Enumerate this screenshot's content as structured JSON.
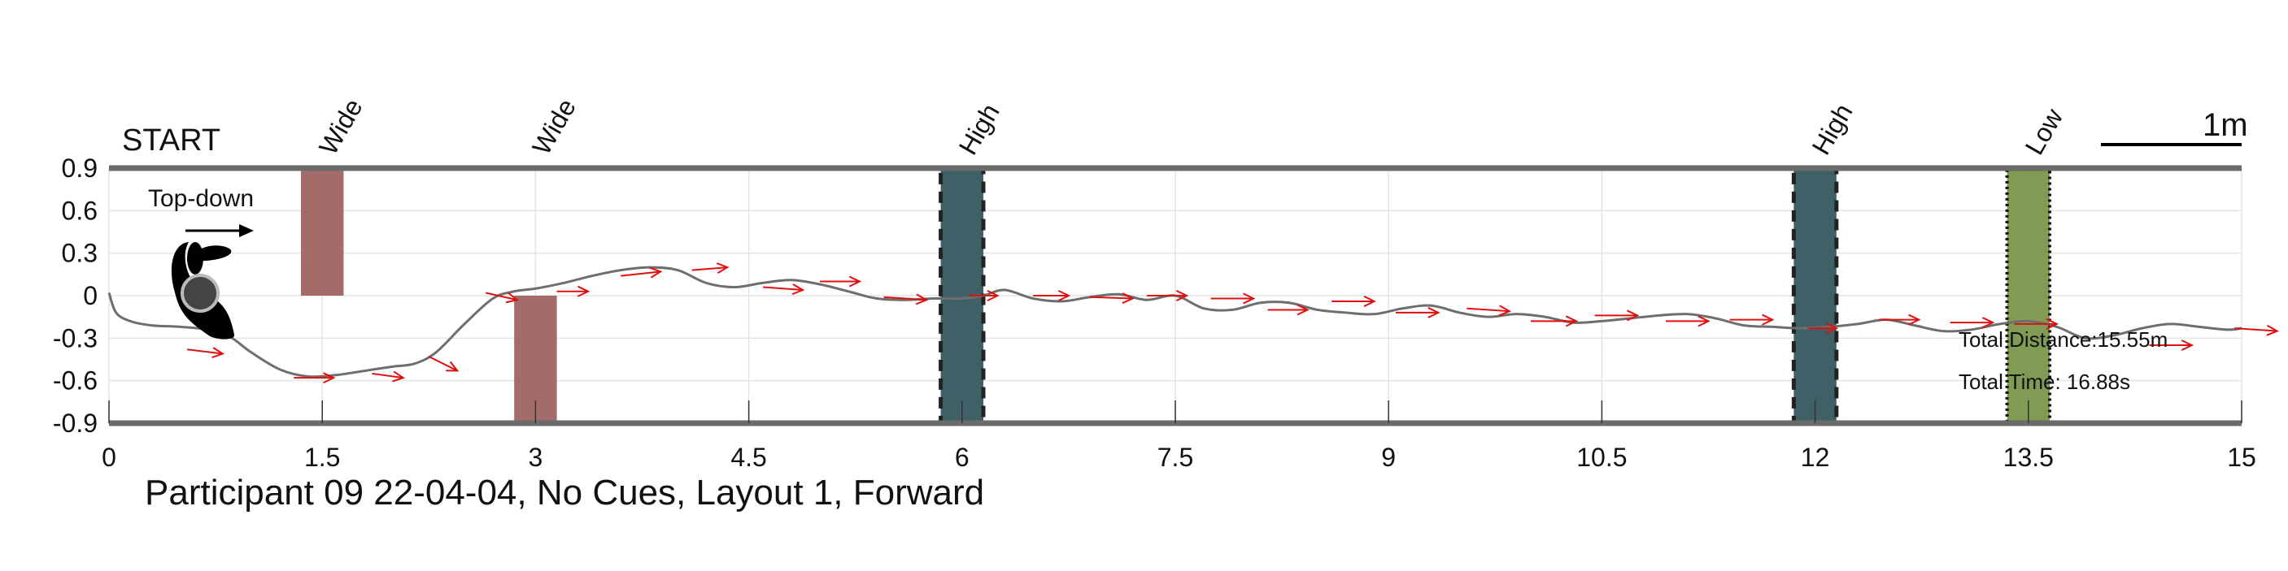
{
  "chart_data": {
    "type": "line",
    "title": "Participant 09 22-04-04, No Cues, Layout 1, Forward",
    "xlabel": "",
    "ylabel": "",
    "xlim": [
      0,
      15
    ],
    "ylim": [
      -0.9,
      0.9
    ],
    "grid": true,
    "x_ticks": [
      0,
      1.5,
      3,
      4.5,
      6,
      7.5,
      9,
      10.5,
      12,
      13.5,
      15
    ],
    "y_ticks": [
      0.9,
      0.6,
      0.3,
      0,
      -0.3,
      -0.6,
      -0.9
    ],
    "x_tick_labels": [
      "0",
      "1.5",
      "3",
      "4.5",
      "6",
      "7.5",
      "9",
      "10.5",
      "12",
      "13.5",
      "15"
    ],
    "y_tick_labels": [
      "0.9",
      "0.6",
      "0.3",
      "0",
      "-0.3",
      "-0.6",
      "-0.9"
    ],
    "start_label": "START",
    "legend_label": "Top-down",
    "scale_label": "1m",
    "annotations": [
      "Total Distance:15.55m",
      "Total Time: 16.88s"
    ],
    "obstacles": [
      {
        "label": "Wide",
        "type": "wide",
        "x0": 1.35,
        "x1": 1.65,
        "y0": 0,
        "y1": 0.9,
        "color": "#a46b6b"
      },
      {
        "label": "Wide",
        "type": "wide",
        "x0": 2.85,
        "x1": 3.15,
        "y0": -0.9,
        "y1": 0,
        "color": "#a46b6b"
      },
      {
        "label": "High",
        "type": "high",
        "x0": 5.85,
        "x1": 6.15,
        "y0": -0.9,
        "y1": 0.9,
        "color": "#3f6066"
      },
      {
        "label": "High",
        "type": "high",
        "x0": 11.85,
        "x1": 12.15,
        "y0": -0.9,
        "y1": 0.9,
        "color": "#3f6066"
      },
      {
        "label": "Low",
        "type": "low",
        "x0": 13.35,
        "x1": 13.65,
        "y0": -0.9,
        "y1": 0.9,
        "color": "#7f9b54"
      }
    ],
    "series": [
      {
        "x": [
          0,
          0.05,
          0.15,
          0.3,
          0.5,
          0.7,
          0.85,
          1.0,
          1.2,
          1.4,
          1.6,
          1.8,
          2.0,
          2.15,
          2.3,
          2.5,
          2.7,
          2.85,
          3.0,
          3.2,
          3.4,
          3.6,
          3.8,
          4.0,
          4.2,
          4.4,
          4.6,
          4.8,
          5.0,
          5.2,
          5.4,
          5.6,
          5.8,
          6.0,
          6.15,
          6.3,
          6.5,
          6.7,
          6.9,
          7.1,
          7.3,
          7.5,
          7.7,
          7.9,
          8.1,
          8.3,
          8.5,
          8.7,
          8.9,
          9.1,
          9.3,
          9.5,
          9.7,
          9.9,
          10.1,
          10.3,
          10.5,
          10.7,
          10.9,
          11.1,
          11.3,
          11.5,
          11.7,
          11.9,
          12.1,
          12.3,
          12.5,
          12.7,
          12.9,
          13.1,
          13.3,
          13.5,
          13.7,
          13.9,
          14.1,
          14.3,
          14.5,
          14.7,
          14.9,
          15.0
        ],
        "y": [
          0.02,
          -0.12,
          -0.18,
          -0.21,
          -0.22,
          -0.24,
          -0.29,
          -0.4,
          -0.52,
          -0.57,
          -0.56,
          -0.53,
          -0.5,
          -0.48,
          -0.4,
          -0.2,
          -0.02,
          0.03,
          0.05,
          0.09,
          0.14,
          0.18,
          0.2,
          0.18,
          0.09,
          0.06,
          0.09,
          0.11,
          0.08,
          0.03,
          -0.02,
          -0.03,
          -0.02,
          -0.02,
          0.0,
          0.04,
          -0.02,
          -0.04,
          -0.01,
          0.01,
          -0.03,
          0.0,
          -0.09,
          -0.1,
          -0.05,
          -0.05,
          -0.1,
          -0.12,
          -0.13,
          -0.09,
          -0.07,
          -0.12,
          -0.15,
          -0.13,
          -0.15,
          -0.19,
          -0.18,
          -0.16,
          -0.14,
          -0.13,
          -0.16,
          -0.21,
          -0.22,
          -0.23,
          -0.22,
          -0.2,
          -0.17,
          -0.21,
          -0.25,
          -0.24,
          -0.2,
          -0.18,
          -0.22,
          -0.3,
          -0.28,
          -0.23,
          -0.2,
          -0.22,
          -0.24,
          -0.23
        ],
        "color": "#6e6e6e"
      }
    ],
    "direction_arrows": [
      [
        0.55,
        -0.38,
        0.25,
        -0.03
      ],
      [
        1.3,
        -0.58,
        0.28,
        0.0
      ],
      [
        1.85,
        -0.55,
        0.22,
        -0.03
      ],
      [
        2.25,
        -0.43,
        0.2,
        -0.1
      ],
      [
        2.65,
        0.02,
        0.22,
        -0.05
      ],
      [
        3.15,
        0.03,
        0.22,
        0.0
      ],
      [
        3.6,
        0.14,
        0.28,
        0.03
      ],
      [
        4.1,
        0.18,
        0.25,
        0.02
      ],
      [
        4.6,
        0.06,
        0.28,
        -0.02
      ],
      [
        5.0,
        0.1,
        0.28,
        0.0
      ],
      [
        5.45,
        -0.01,
        0.3,
        -0.02
      ],
      [
        6.05,
        0.0,
        0.2,
        0.0
      ],
      [
        6.5,
        0.0,
        0.25,
        0.0
      ],
      [
        6.9,
        -0.01,
        0.3,
        -0.01
      ],
      [
        7.3,
        0.0,
        0.28,
        0.0
      ],
      [
        7.75,
        -0.02,
        0.3,
        0.0
      ],
      [
        8.15,
        -0.1,
        0.28,
        0.0
      ],
      [
        8.6,
        -0.04,
        0.3,
        0.0
      ],
      [
        9.05,
        -0.12,
        0.3,
        0.0
      ],
      [
        9.55,
        -0.09,
        0.3,
        -0.02
      ],
      [
        10.0,
        -0.18,
        0.32,
        0.0
      ],
      [
        10.45,
        -0.14,
        0.3,
        0.0
      ],
      [
        10.95,
        -0.18,
        0.3,
        0.0
      ],
      [
        11.4,
        -0.17,
        0.3,
        0.0
      ],
      [
        11.95,
        -0.23,
        0.2,
        0.0
      ],
      [
        12.45,
        -0.17,
        0.28,
        0.0
      ],
      [
        12.95,
        -0.19,
        0.3,
        0.0
      ],
      [
        13.4,
        -0.2,
        0.3,
        0.0
      ],
      [
        14.35,
        -0.35,
        0.3,
        0.0
      ],
      [
        14.95,
        -0.23,
        0.3,
        -0.02
      ]
    ]
  }
}
